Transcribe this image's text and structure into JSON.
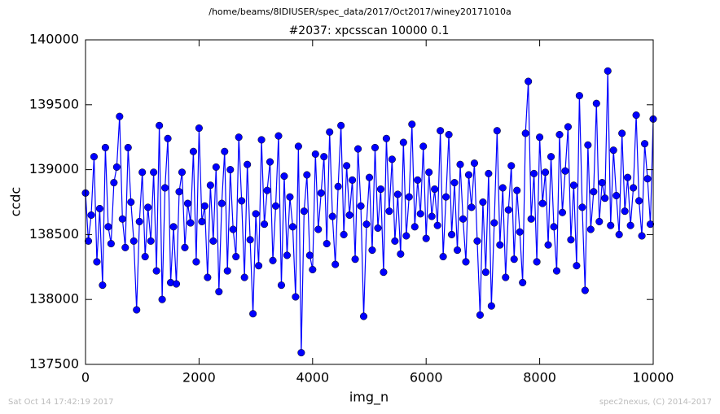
{
  "chart_data": {
    "type": "line",
    "suptitle": "/home/beams/8IDIUSER/spec_data/2017/Oct2017/winey20171010a",
    "title": "#2037: xpcsscan 10000 0.1",
    "x_label": "img_n",
    "y_label": "ccdc",
    "footer_left": "Sat Oct 14 17:42:19 2017",
    "footer_right": "spec2nexus, (C) 2014-2017",
    "xlim": [
      0,
      10000
    ],
    "ylim": [
      137500,
      140000
    ],
    "xticks": [
      0,
      2000,
      4000,
      6000,
      8000,
      10000
    ],
    "yticks": [
      137500,
      138000,
      138500,
      139000,
      139500,
      140000
    ],
    "x": [
      0,
      50,
      100,
      150,
      200,
      250,
      300,
      350,
      400,
      450,
      500,
      550,
      600,
      650,
      700,
      750,
      800,
      850,
      900,
      950,
      1000,
      1050,
      1100,
      1150,
      1200,
      1250,
      1300,
      1350,
      1400,
      1450,
      1500,
      1550,
      1600,
      1650,
      1700,
      1750,
      1800,
      1850,
      1900,
      1950,
      2000,
      2050,
      2100,
      2150,
      2200,
      2250,
      2300,
      2350,
      2400,
      2450,
      2500,
      2550,
      2600,
      2650,
      2700,
      2750,
      2800,
      2850,
      2900,
      2950,
      3000,
      3050,
      3100,
      3150,
      3200,
      3250,
      3300,
      3350,
      3400,
      3450,
      3500,
      3550,
      3600,
      3650,
      3700,
      3750,
      3800,
      3850,
      3900,
      3950,
      4000,
      4050,
      4100,
      4150,
      4200,
      4250,
      4300,
      4350,
      4400,
      4450,
      4500,
      4550,
      4600,
      4650,
      4700,
      4750,
      4800,
      4850,
      4900,
      4950,
      5000,
      5050,
      5100,
      5150,
      5200,
      5250,
      5300,
      5350,
      5400,
      5450,
      5500,
      5550,
      5600,
      5650,
      5700,
      5750,
      5800,
      5850,
      5900,
      5950,
      6000,
      6050,
      6100,
      6150,
      6200,
      6250,
      6300,
      6350,
      6400,
      6450,
      6500,
      6550,
      6600,
      6650,
      6700,
      6750,
      6800,
      6850,
      6900,
      6950,
      7000,
      7050,
      7100,
      7150,
      7200,
      7250,
      7300,
      7350,
      7400,
      7450,
      7500,
      7550,
      7600,
      7650,
      7700,
      7750,
      7800,
      7850,
      7900,
      7950,
      8000,
      8050,
      8100,
      8150,
      8200,
      8250,
      8300,
      8350,
      8400,
      8450,
      8500,
      8550,
      8600,
      8650,
      8700,
      8750,
      8800,
      8850,
      8900,
      8950,
      9000,
      9050,
      9100,
      9150,
      9200,
      9250,
      9300,
      9350,
      9400,
      9450,
      9500,
      9550,
      9600,
      9650,
      9700,
      9750,
      9800,
      9850,
      9900,
      9950,
      10000
    ],
    "series": [
      {
        "color": "#0000ff",
        "values": [
          138820,
          138450,
          138650,
          139100,
          138290,
          138700,
          138110,
          139170,
          138560,
          138430,
          138900,
          139020,
          139410,
          138620,
          138400,
          139170,
          138750,
          138450,
          137920,
          138600,
          138980,
          138330,
          138710,
          138450,
          138980,
          138220,
          139340,
          138000,
          138860,
          139240,
          138130,
          138560,
          138120,
          138830,
          138980,
          138400,
          138740,
          138590,
          139140,
          138290,
          139320,
          138600,
          138720,
          138170,
          138880,
          138450,
          139020,
          138060,
          138740,
          139140,
          138220,
          139000,
          138540,
          138330,
          139250,
          138760,
          138170,
          139040,
          138460,
          137890,
          138660,
          138260,
          139230,
          138580,
          138840,
          139060,
          138300,
          138720,
          139260,
          138110,
          138950,
          138340,
          138790,
          138560,
          138020,
          139180,
          137590,
          138680,
          138960,
          138340,
          138230,
          139120,
          138540,
          138820,
          139100,
          138430,
          139290,
          138640,
          138270,
          138870,
          139340,
          138500,
          139030,
          138650,
          138920,
          138310,
          139160,
          138720,
          137870,
          138580,
          138940,
          138380,
          139170,
          138550,
          138850,
          138210,
          139240,
          138680,
          139080,
          138450,
          138810,
          138350,
          139210,
          138490,
          138790,
          139350,
          138560,
          138920,
          138660,
          139180,
          138470,
          138980,
          138640,
          138850,
          138570,
          139300,
          138330,
          138790,
          139270,
          138500,
          138900,
          138380,
          139040,
          138620,
          138290,
          138960,
          138710,
          139050,
          138450,
          137880,
          138750,
          138210,
          138970,
          137950,
          138590,
          139300,
          138420,
          138860,
          138170,
          138690,
          139030,
          138310,
          138840,
          138520,
          138130,
          139280,
          139680,
          138620,
          138970,
          138290,
          139250,
          138740,
          138980,
          138420,
          139100,
          138560,
          138220,
          139270,
          138670,
          138990,
          139330,
          138460,
          138880,
          138260,
          139570,
          138710,
          138070,
          139190,
          138540,
          138830,
          139510,
          138600,
          138900,
          138780,
          139760,
          138570,
          139150,
          138800,
          138500,
          139280,
          138680,
          138940,
          138570,
          138860,
          139420,
          138760,
          138490,
          139200,
          138930,
          138580,
          139390
        ]
      }
    ]
  }
}
